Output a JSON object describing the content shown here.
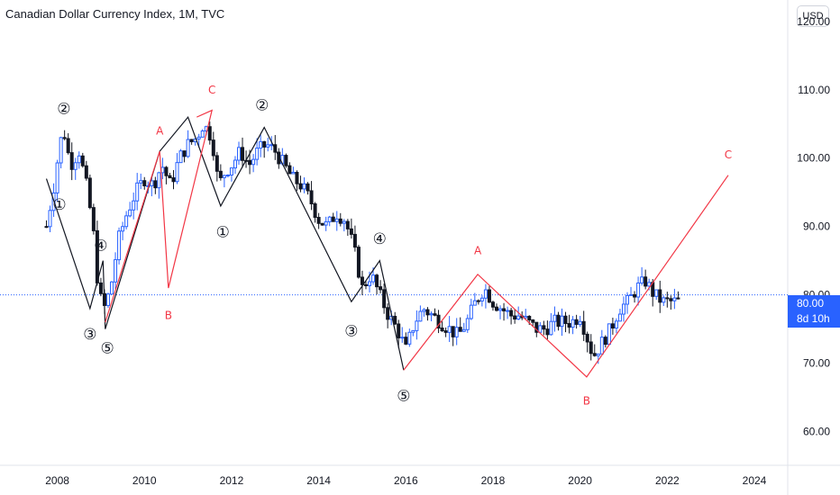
{
  "header": {
    "title": "Canadian Dollar Currency Index, 1M, TVC",
    "currency_label": "USD"
  },
  "price_tag": {
    "price": "80.00",
    "countdown": "8d 10h"
  },
  "colors": {
    "up": "#2962ff",
    "down": "#131722",
    "wave_black": "#131722",
    "wave_red": "#f23645",
    "price_line": "#2962ff",
    "axis_text": "#131722",
    "separator": "#e0e3eb"
  },
  "chart_data": {
    "type": "candlestick",
    "title": "Canadian Dollar Currency Index, 1M, TVC",
    "ylim": [
      55.6,
      123.0
    ],
    "xlim": [
      2006.85,
      2024.6
    ],
    "y_ticks": [
      "60.00",
      "70.00",
      "80.00",
      "90.00",
      "100.00",
      "110.00",
      "120.00"
    ],
    "x_ticks": [
      "2008",
      "2010",
      "2012",
      "2014",
      "2016",
      "2018",
      "2020",
      "2022",
      "2024"
    ],
    "current_price": 80.0,
    "closes": [
      [
        2007.75,
        90
      ],
      [
        2007.95,
        97
      ],
      [
        2008.05,
        102
      ],
      [
        2008.15,
        104
      ],
      [
        2008.3,
        99
      ],
      [
        2008.5,
        101
      ],
      [
        2008.7,
        95
      ],
      [
        2008.85,
        88
      ],
      [
        2008.95,
        80
      ],
      [
        2009.1,
        78
      ],
      [
        2009.25,
        82
      ],
      [
        2009.4,
        88
      ],
      [
        2009.6,
        92
      ],
      [
        2009.8,
        95
      ],
      [
        2010.0,
        97
      ],
      [
        2010.2,
        96
      ],
      [
        2010.4,
        99
      ],
      [
        2010.6,
        96
      ],
      [
        2010.8,
        100
      ],
      [
        2011.0,
        102
      ],
      [
        2011.2,
        103
      ],
      [
        2011.35,
        105
      ],
      [
        2011.55,
        103
      ],
      [
        2011.7,
        96
      ],
      [
        2011.85,
        98
      ],
      [
        2012.0,
        99
      ],
      [
        2012.2,
        101
      ],
      [
        2012.4,
        99
      ],
      [
        2012.6,
        101
      ],
      [
        2012.8,
        102
      ],
      [
        2013.0,
        101
      ],
      [
        2013.2,
        99
      ],
      [
        2013.4,
        97
      ],
      [
        2013.6,
        96
      ],
      [
        2013.8,
        94
      ],
      [
        2014.0,
        91
      ],
      [
        2014.2,
        90
      ],
      [
        2014.4,
        92
      ],
      [
        2014.6,
        91
      ],
      [
        2014.8,
        87
      ],
      [
        2015.0,
        81
      ],
      [
        2015.2,
        83
      ],
      [
        2015.4,
        80
      ],
      [
        2015.6,
        77
      ],
      [
        2015.8,
        75
      ],
      [
        2016.0,
        72
      ],
      [
        2016.2,
        76
      ],
      [
        2016.4,
        78
      ],
      [
        2016.6,
        77
      ],
      [
        2016.8,
        76
      ],
      [
        2017.0,
        75
      ],
      [
        2017.2,
        74
      ],
      [
        2017.4,
        76
      ],
      [
        2017.6,
        79
      ],
      [
        2017.8,
        81
      ],
      [
        2018.0,
        79
      ],
      [
        2018.2,
        78
      ],
      [
        2018.4,
        77
      ],
      [
        2018.6,
        77
      ],
      [
        2018.8,
        76
      ],
      [
        2019.0,
        75
      ],
      [
        2019.2,
        75
      ],
      [
        2019.4,
        76
      ],
      [
        2019.6,
        76
      ],
      [
        2019.8,
        76
      ],
      [
        2020.0,
        77
      ],
      [
        2020.15,
        74
      ],
      [
        2020.3,
        71
      ],
      [
        2020.5,
        73
      ],
      [
        2020.7,
        75
      ],
      [
        2020.9,
        78
      ],
      [
        2021.1,
        79
      ],
      [
        2021.3,
        81
      ],
      [
        2021.5,
        82
      ],
      [
        2021.7,
        80
      ],
      [
        2021.9,
        79
      ],
      [
        2022.1,
        79
      ],
      [
        2022.3,
        79
      ]
    ],
    "waves": [
      {
        "color": "wave_black",
        "points": [
          [
            2007.75,
            97
          ],
          [
            2008.75,
            78
          ],
          [
            2009.05,
            85
          ],
          [
            2009.1,
            75
          ],
          [
            2010.35,
            101
          ],
          [
            2011.0,
            106
          ],
          [
            2011.75,
            93
          ],
          [
            2012.75,
            104.5
          ],
          [
            2014.75,
            79
          ],
          [
            2015.4,
            85
          ],
          [
            2015.95,
            69
          ]
        ],
        "labels": [
          {
            "text": "①",
            "x": 2008.05,
            "y": 93
          },
          {
            "text": "②",
            "x": 2008.15,
            "y": 107
          },
          {
            "text": "③",
            "x": 2008.75,
            "y": 74
          },
          {
            "text": "④",
            "x": 2009.0,
            "y": 87
          },
          {
            "text": "⑤",
            "x": 2009.15,
            "y": 72
          },
          {
            "text": "①",
            "x": 2011.8,
            "y": 89
          },
          {
            "text": "②",
            "x": 2012.7,
            "y": 107.5
          },
          {
            "text": "③",
            "x": 2014.75,
            "y": 74.5
          },
          {
            "text": "④",
            "x": 2015.4,
            "y": 88
          },
          {
            "text": "⑤",
            "x": 2015.95,
            "y": 65
          }
        ]
      },
      {
        "color": "wave_red",
        "points": [
          [
            2009.1,
            76
          ],
          [
            2010.35,
            101
          ],
          [
            2010.55,
            81
          ],
          [
            2011.55,
            107
          ],
          [
            2011.2,
            106
          ]
        ],
        "labels": [
          {
            "text": "A",
            "x": 2010.35,
            "y": 104
          },
          {
            "text": "B",
            "x": 2010.55,
            "y": 77
          },
          {
            "text": "C",
            "x": 2011.55,
            "y": 110
          }
        ]
      },
      {
        "color": "wave_red",
        "points": [
          [
            2015.95,
            69
          ],
          [
            2017.65,
            83
          ],
          [
            2020.15,
            68
          ],
          [
            2023.4,
            97.5
          ]
        ],
        "labels": [
          {
            "text": "A",
            "x": 2017.65,
            "y": 86.5
          },
          {
            "text": "B",
            "x": 2020.15,
            "y": 64.5
          },
          {
            "text": "C",
            "x": 2023.4,
            "y": 100.5
          }
        ]
      }
    ]
  }
}
